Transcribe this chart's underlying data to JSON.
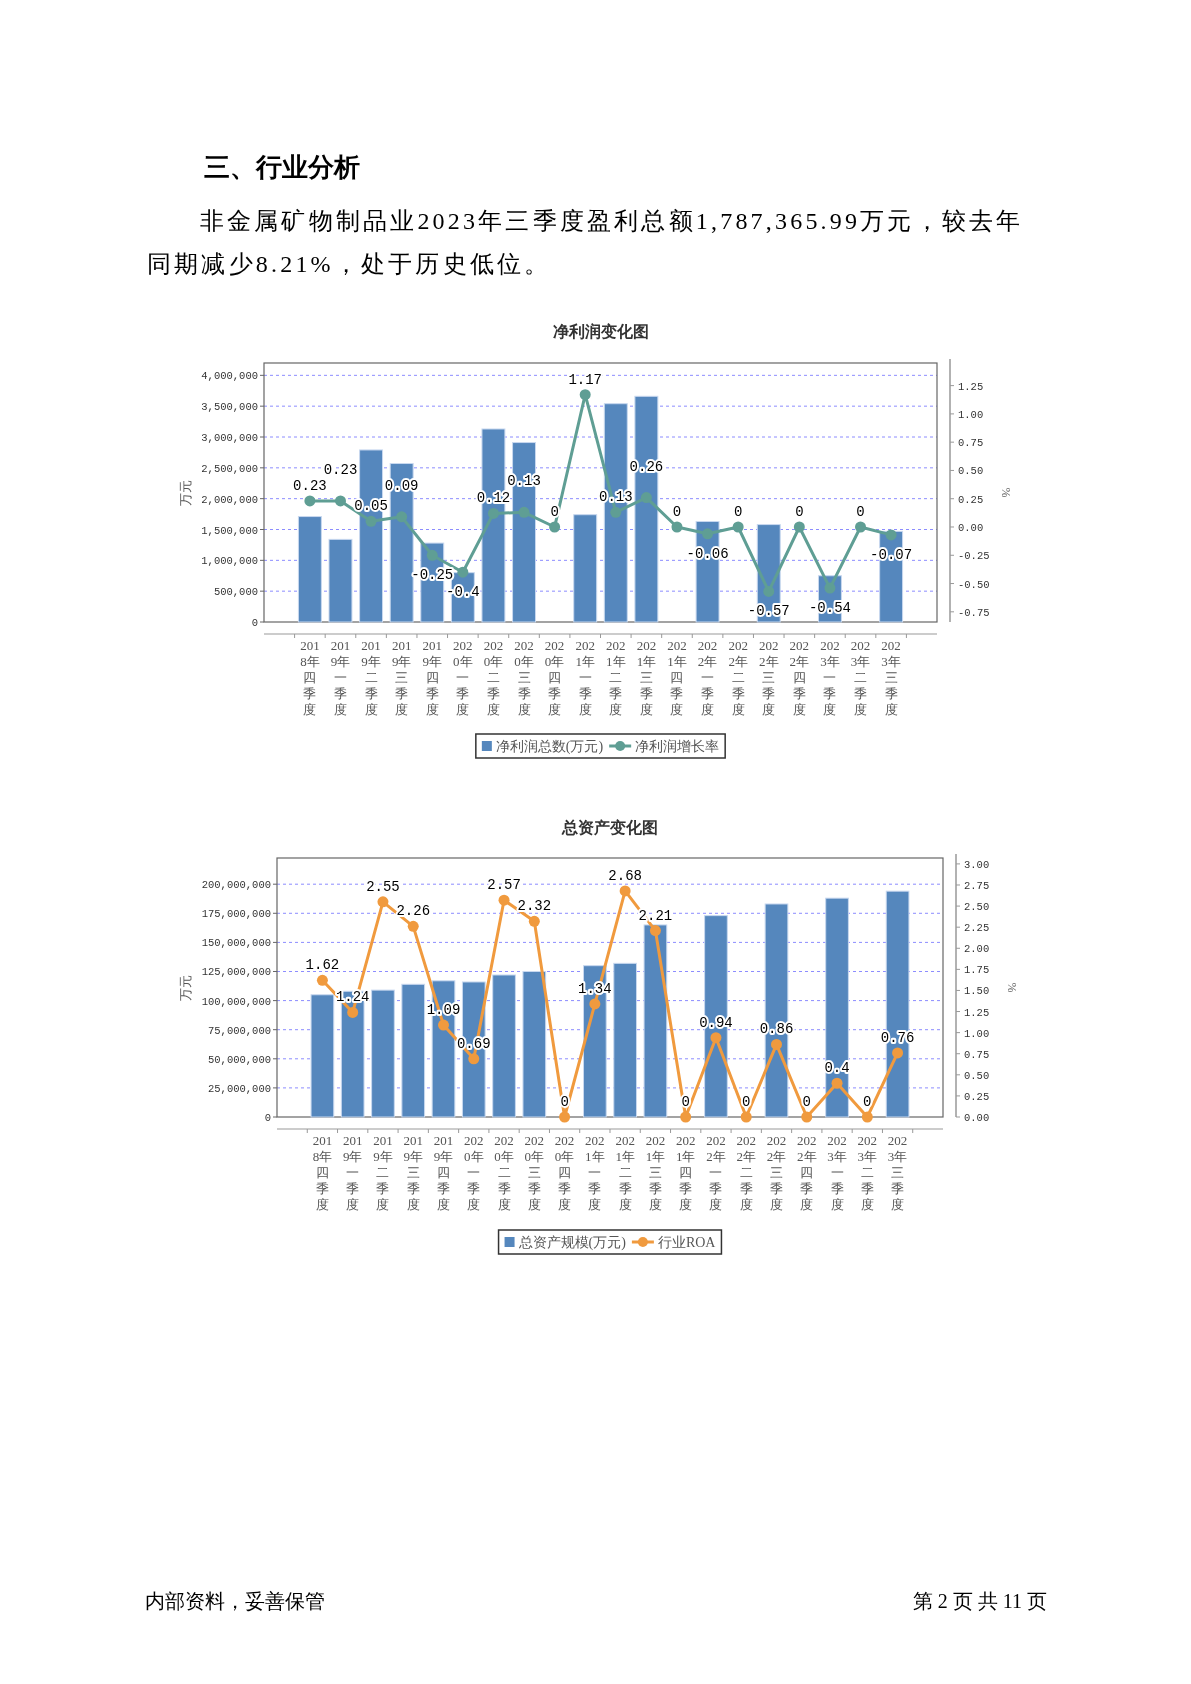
{
  "chart_data": [
    {
      "type": "bar",
      "title": "净利润变化图",
      "ylabel": "万元",
      "y2label": "%",
      "categories": [
        "2018年四季度",
        "2019年一季度",
        "2019年二季度",
        "2019年三季度",
        "2019年四季度",
        "2020年一季度",
        "2020年二季度",
        "2020年三季度",
        "2020年四季度",
        "2021年一季度",
        "2021年二季度",
        "2021年三季度",
        "2021年四季度",
        "2022年一季度",
        "2022年二季度",
        "2022年三季度",
        "2022年四季度",
        "2023年一季度",
        "2023年二季度",
        "2023年三季度"
      ],
      "series": [
        {
          "name": "净利润总数(万元)",
          "color": "#5587bd",
          "values": [
            1710000,
            1340000,
            2790000,
            2570000,
            1280000,
            800000,
            3130000,
            2910000,
            null,
            1740000,
            3540000,
            3660000,
            null,
            1630000,
            null,
            1580000,
            null,
            750000,
            null,
            1470000
          ]
        },
        {
          "name": "净利润增长率",
          "type": "line",
          "axis": "y2",
          "color": "#5f9e94",
          "marker": "circle",
          "values": [
            0.23,
            0.23,
            0.05,
            0.09,
            -0.25,
            -0.4,
            0.12,
            0.13,
            0,
            1.17,
            0.13,
            0.26,
            0,
            -0.06,
            0,
            -0.57,
            0,
            -0.54,
            0,
            -0.07
          ],
          "value_labels": [
            "0.23",
            "0.23",
            "0.05",
            "0.09",
            "-0.25",
            "-0.4",
            "0.12",
            "0.13",
            "0",
            "1.17",
            "0.13",
            "0.26",
            "0",
            "-0.06",
            "0",
            "-0.57",
            "0",
            "-0.54",
            "0",
            "-0.07"
          ]
        }
      ],
      "ylim": [
        0,
        4200000
      ],
      "yticks": [
        0,
        {
          "value": 500000,
          "label": "500,000"
        },
        {
          "value": 1000000,
          "label": "1,000,000"
        },
        {
          "value": 1500000,
          "label": "1,500,000"
        },
        {
          "value": 2000000,
          "label": "2,000,000"
        },
        {
          "value": 2500000,
          "label": "2,500,000"
        },
        {
          "value": 3000000,
          "label": "3,000,000"
        },
        {
          "value": 3500000,
          "label": "3,500,000"
        },
        {
          "value": 4000000,
          "label": "4,000,000"
        }
      ],
      "y2lim": [
        -0.84,
        1.45
      ],
      "y2ticks": [
        {
          "value": -0.75,
          "label": "-0.75"
        },
        {
          "value": -0.5,
          "label": "-0.50"
        },
        {
          "value": -0.25,
          "label": "-0.25"
        },
        {
          "value": 0,
          "label": "0.00"
        },
        {
          "value": 0.25,
          "label": "0.25"
        },
        {
          "value": 0.5,
          "label": "0.50"
        },
        {
          "value": 0.75,
          "label": "0.75"
        },
        {
          "value": 1,
          "label": "1.00"
        },
        {
          "value": 1.25,
          "label": "1.25"
        }
      ],
      "grid": "y",
      "legend": "bottom",
      "annotations": [
        "三、行业分析",
        "非金属矿物制品业2023年三季度盈利总额1,787,365.99万元，较去年同期减少8.21%，处于历史低位。"
      ]
    },
    {
      "type": "bar",
      "title": "总资产变化图",
      "ylabel": "万元",
      "y2label": "%",
      "categories": [
        "2018年四季度",
        "2019年一季度",
        "2019年二季度",
        "2019年三季度",
        "2019年四季度",
        "2020年一季度",
        "2020年二季度",
        "2020年三季度",
        "2020年四季度",
        "2021年一季度",
        "2021年二季度",
        "2021年三季度",
        "2021年四季度",
        "2022年一季度",
        "2022年二季度",
        "2022年三季度",
        "2022年四季度",
        "2023年一季度",
        "2023年二季度",
        "2023年三季度"
      ],
      "series": [
        {
          "name": "总资产规模(万元)",
          "color": "#5587bd",
          "values": [
            105000000,
            108000000,
            109000000,
            114000000,
            117000000,
            116000000,
            122000000,
            125000000,
            null,
            130000000,
            132000000,
            165000000,
            null,
            173000000,
            null,
            183000000,
            null,
            188000000,
            null,
            194000000
          ]
        },
        {
          "name": "行业ROA",
          "type": "line",
          "axis": "y2",
          "color": "#f09a3e",
          "marker": "circle",
          "values": [
            1.62,
            1.24,
            2.55,
            2.26,
            1.09,
            0.69,
            2.57,
            2.32,
            0,
            1.34,
            2.68,
            2.21,
            0,
            0.94,
            0,
            0.86,
            0,
            0.4,
            0,
            0.76
          ],
          "value_labels": [
            "1.62",
            "1.24",
            "2.55",
            "2.26",
            "1.09",
            "0.69",
            "2.57",
            "2.32",
            "0",
            "1.34",
            "2.68",
            "2.21",
            "0",
            "0.94",
            "0",
            "0.86",
            "0",
            "0.4",
            "0",
            "0.76"
          ]
        }
      ],
      "ylim": [
        0,
        222500000
      ],
      "yticks": [
        0,
        {
          "value": 25000000,
          "label": "25,000,000"
        },
        {
          "value": 50000000,
          "label": "50,000,000"
        },
        {
          "value": 75000000,
          "label": "75,000,000"
        },
        {
          "value": 100000000,
          "label": "100,000,000"
        },
        {
          "value": 125000000,
          "label": "125,000,000"
        },
        {
          "value": 150000000,
          "label": "150,000,000"
        },
        {
          "value": 175000000,
          "label": "175,000,000"
        },
        {
          "value": 200000000,
          "label": "200,000,000"
        }
      ],
      "y2lim": [
        0,
        3.07
      ],
      "y2ticks": [
        {
          "value": 0,
          "label": "0.00"
        },
        {
          "value": 0.25,
          "label": "0.25"
        },
        {
          "value": 0.5,
          "label": "0.50"
        },
        {
          "value": 0.75,
          "label": "0.75"
        },
        {
          "value": 1,
          "label": "1.00"
        },
        {
          "value": 1.25,
          "label": "1.25"
        },
        {
          "value": 1.5,
          "label": "1.50"
        },
        {
          "value": 1.75,
          "label": "1.75"
        },
        {
          "value": 2,
          "label": "2.00"
        },
        {
          "value": 2.25,
          "label": "2.25"
        },
        {
          "value": 2.5,
          "label": "2.50"
        },
        {
          "value": 2.75,
          "label": "2.75"
        },
        {
          "value": 3,
          "label": "3.00"
        }
      ],
      "grid": "y",
      "legend": "bottom",
      "annotations": [
        "内部资料，妥善保管",
        "第 2 页  共 11 页"
      ]
    }
  ]
}
